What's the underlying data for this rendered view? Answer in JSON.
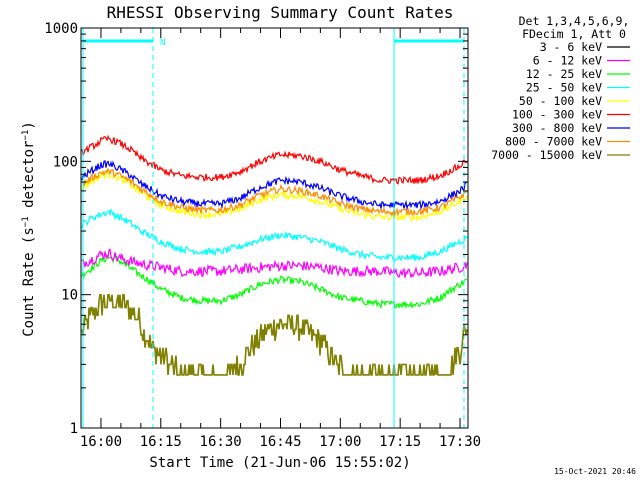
{
  "chart_data": {
    "type": "line",
    "title": "RHESSI Observing Summary Count Rates",
    "xlabel": "Start Time (21-Jun-06 15:55:02)",
    "ylabel": "Count Rate (s⁻¹ detector⁻¹)",
    "ylabel_parts": {
      "main": "Count Rate (s",
      "exp1": "−1",
      "mid": " detector",
      "exp2": "−1",
      "end": ")"
    },
    "y_scale": "log",
    "ylim": [
      1,
      1000
    ],
    "xlim_minutes_after_1555": [
      0,
      97
    ],
    "y_ticks": [
      {
        "value": 1000,
        "label": "1000"
      },
      {
        "value": 100,
        "label": "100"
      },
      {
        "value": 10,
        "label": "10"
      },
      {
        "value": 1,
        "label": "1"
      }
    ],
    "x_ticks": [
      {
        "minute": 5,
        "label": "16:00"
      },
      {
        "minute": 20,
        "label": "16:15"
      },
      {
        "minute": 35,
        "label": "16:30"
      },
      {
        "minute": 50,
        "label": "16:45"
      },
      {
        "minute": 65,
        "label": "17:00"
      },
      {
        "minute": 80,
        "label": "17:15"
      },
      {
        "minute": 95,
        "label": "17:30"
      }
    ],
    "legend_header": [
      "Det 1,3,4,5,6,9,",
      "FDecim 1, Att 0"
    ],
    "series": [
      {
        "name": "3 - 6 keV",
        "color": "#000000",
        "values": []
      },
      {
        "name": "6 - 12 keV",
        "color": "#ff00ff",
        "x": [
          0,
          3,
          5,
          7,
          9,
          12,
          15,
          20,
          25,
          30,
          35,
          40,
          45,
          50,
          55,
          60,
          65,
          70,
          75,
          80,
          85,
          90,
          95,
          97
        ],
        "values": [
          17,
          18.5,
          20,
          20.5,
          19,
          18,
          17,
          16,
          15,
          15,
          15,
          15.5,
          16,
          16.5,
          16.5,
          16,
          15,
          15,
          15,
          14.5,
          14.5,
          15,
          16,
          17
        ]
      },
      {
        "name": "12 - 25 keV",
        "color": "#00ff00",
        "x": [
          0,
          3,
          5,
          7,
          9,
          12,
          15,
          20,
          25,
          30,
          35,
          40,
          45,
          50,
          55,
          60,
          65,
          70,
          75,
          80,
          85,
          90,
          95,
          97
        ],
        "values": [
          14,
          16,
          18,
          19,
          18.5,
          16,
          14,
          11,
          9.5,
          9,
          9,
          10,
          12,
          13,
          12.5,
          11,
          9.5,
          9,
          8.5,
          8.5,
          8.5,
          9.5,
          12,
          13
        ]
      },
      {
        "name": "25 - 50 keV",
        "color": "#00ffff",
        "x": [
          0,
          3,
          5,
          7,
          9,
          12,
          15,
          20,
          25,
          30,
          35,
          40,
          45,
          50,
          55,
          60,
          65,
          70,
          75,
          80,
          85,
          90,
          95,
          97
        ],
        "values": [
          33,
          38,
          40,
          42,
          39,
          35,
          30,
          25,
          22,
          21,
          21,
          23,
          26,
          28,
          27,
          25,
          22,
          20,
          19,
          19,
          19,
          21,
          25,
          27
        ]
      },
      {
        "name": "50 - 100 keV",
        "color": "#ffff00",
        "x": [
          0,
          3,
          5,
          7,
          9,
          12,
          15,
          20,
          25,
          30,
          35,
          40,
          45,
          50,
          55,
          60,
          65,
          70,
          75,
          80,
          85,
          90,
          95,
          97
        ],
        "values": [
          62,
          72,
          78,
          80,
          76,
          68,
          58,
          47,
          42,
          40,
          40,
          44,
          52,
          56,
          55,
          50,
          44,
          40,
          38,
          38,
          38,
          42,
          50,
          56
        ]
      },
      {
        "name": "100 - 300 keV",
        "color": "#ff0000",
        "x": [
          0,
          3,
          5,
          7,
          9,
          12,
          15,
          20,
          25,
          30,
          35,
          40,
          45,
          50,
          55,
          60,
          65,
          70,
          75,
          80,
          85,
          90,
          95,
          97
        ],
        "values": [
          115,
          130,
          142,
          148,
          140,
          125,
          105,
          86,
          78,
          76,
          76,
          84,
          100,
          112,
          110,
          100,
          86,
          78,
          72,
          72,
          72,
          78,
          92,
          105
        ]
      },
      {
        "name": "300 - 800 keV",
        "color": "#0000ff",
        "x": [
          0,
          3,
          5,
          7,
          9,
          12,
          15,
          20,
          25,
          30,
          35,
          40,
          45,
          50,
          55,
          60,
          65,
          70,
          75,
          80,
          85,
          90,
          95,
          97
        ],
        "values": [
          75,
          86,
          94,
          96,
          90,
          80,
          68,
          55,
          50,
          48,
          48,
          53,
          64,
          72,
          70,
          63,
          55,
          50,
          47,
          47,
          47,
          50,
          60,
          68
        ]
      },
      {
        "name": "800 - 7000 keV",
        "color": "#ff8c00",
        "x": [
          0,
          3,
          5,
          7,
          9,
          12,
          15,
          20,
          25,
          30,
          35,
          40,
          45,
          50,
          55,
          60,
          65,
          70,
          75,
          80,
          85,
          90,
          95,
          97
        ],
        "values": [
          66,
          76,
          82,
          84,
          80,
          72,
          62,
          50,
          45,
          43,
          43,
          47,
          56,
          62,
          60,
          55,
          48,
          44,
          42,
          42,
          42,
          45,
          54,
          60
        ]
      },
      {
        "name": "7000 - 15000 keV",
        "color": "#808000",
        "x": [
          0,
          2,
          4,
          6,
          8,
          10,
          12,
          14,
          16,
          18,
          20,
          22,
          25,
          28,
          32,
          36,
          40,
          44,
          47,
          50,
          53,
          56,
          60,
          64,
          68,
          72,
          76,
          80,
          84,
          88,
          92,
          95,
          97
        ],
        "values": [
          5,
          6.5,
          8,
          9,
          9,
          8.5,
          8,
          7,
          5,
          4,
          3.5,
          3,
          2.5,
          2.5,
          2.5,
          2.5,
          3,
          4.5,
          5.5,
          6,
          6,
          5.5,
          4.5,
          3,
          2.5,
          2.5,
          2.5,
          2.5,
          2.5,
          2.5,
          2.5,
          4,
          6
        ]
      }
    ],
    "annotations": {
      "left_bar_label": "N",
      "timestamp": "15-Oct-2021 20:46"
    },
    "grid": false,
    "legend_position": "right"
  }
}
